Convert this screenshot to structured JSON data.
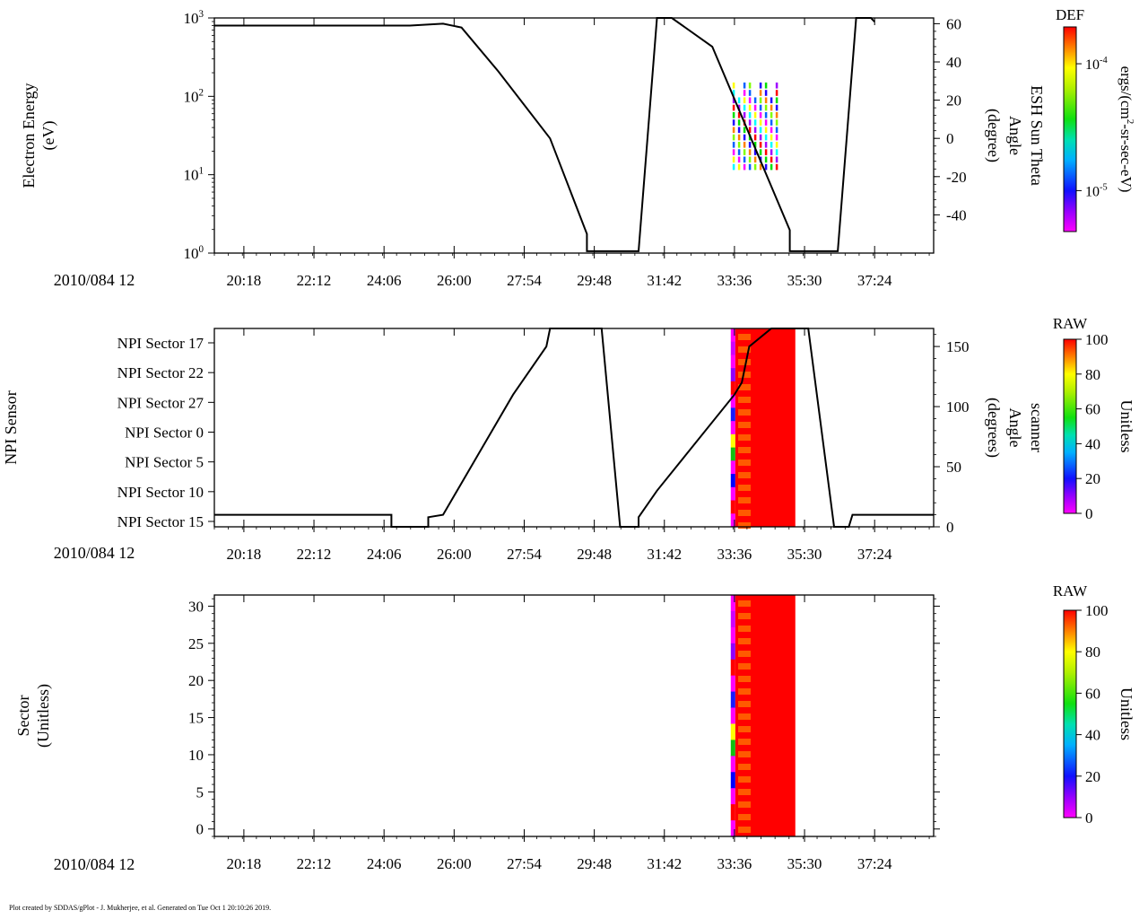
{
  "chart_data": [
    {
      "type": "spectrogram",
      "title": "",
      "date_label": "2010/084 12",
      "ylabel": [
        "Electron Energy",
        "(eV)"
      ],
      "y_scale": "log",
      "ylim": [
        1,
        1000
      ],
      "y_ticks": [
        {
          "value": 1,
          "base": "10",
          "exp": "0"
        },
        {
          "value": 10,
          "base": "10",
          "exp": "1"
        },
        {
          "value": 100,
          "base": "10",
          "exp": "2"
        },
        {
          "value": 1000,
          "base": "10",
          "exp": "3"
        }
      ],
      "xlabel": "",
      "xlim": [
        19.5,
        39.0
      ],
      "x_ticks": [
        {
          "value": 20.3,
          "label": "20:18"
        },
        {
          "value": 22.2,
          "label": "22:12"
        },
        {
          "value": 24.1,
          "label": "24:06"
        },
        {
          "value": 26.0,
          "label": "26:00"
        },
        {
          "value": 27.9,
          "label": "27:54"
        },
        {
          "value": 29.8,
          "label": "29:48"
        },
        {
          "value": 31.7,
          "label": "31:42"
        },
        {
          "value": 33.6,
          "label": "33:36"
        },
        {
          "value": 35.5,
          "label": "35:30"
        },
        {
          "value": 37.4,
          "label": "37:24"
        }
      ],
      "right_axis": {
        "label": [
          "ESH Sun Theta",
          "Angle",
          "(degree)"
        ],
        "ylim": [
          -60,
          63
        ],
        "ticks": [
          -40,
          -20,
          0,
          20,
          40,
          60
        ]
      },
      "overlay_line": {
        "name": "ESH Sun Theta Angle",
        "points": [
          [
            19.5,
            59
          ],
          [
            24.8,
            59
          ],
          [
            25.7,
            60
          ],
          [
            26.2,
            58
          ],
          [
            27.2,
            35
          ],
          [
            28.6,
            0
          ],
          [
            29.6,
            -50
          ],
          [
            29.6,
            -59
          ],
          [
            31.0,
            -59
          ],
          [
            31.5,
            63
          ],
          [
            31.9,
            63
          ],
          [
            33.0,
            48
          ],
          [
            35.1,
            -48
          ],
          [
            35.1,
            -59
          ],
          [
            36.4,
            -59
          ],
          [
            36.9,
            63
          ],
          [
            37.3,
            63
          ],
          [
            37.4,
            61
          ]
        ],
        "color": "#000000"
      },
      "spectrogram_patch": {
        "x_range": [
          33.55,
          34.7
        ],
        "y_range": [
          11,
          150
        ],
        "note": "sparse vertical stripes of DEF values"
      },
      "colorbar": {
        "title": "DEF",
        "label": "ergs/(cm^2-sr-sec-eV)",
        "scale": "log",
        "ticks": [
          {
            "value": 0.0001,
            "base": "10",
            "exp": "-4"
          },
          {
            "value": 1e-05,
            "base": "10",
            "exp": "-5"
          }
        ]
      }
    },
    {
      "type": "spectrogram",
      "title": "",
      "date_label": "2010/084 12",
      "ylabel": [
        "NPI Sensor"
      ],
      "y_categories": [
        "NPI Sector 17",
        "NPI Sector 22",
        "NPI Sector 27",
        "NPI Sector 0",
        "NPI Sector 5",
        "NPI Sector 10",
        "NPI Sector 15"
      ],
      "xlabel": "",
      "xlim": [
        19.5,
        39.0
      ],
      "x_ticks": [
        {
          "value": 20.3,
          "label": "20:18"
        },
        {
          "value": 22.2,
          "label": "22:12"
        },
        {
          "value": 24.1,
          "label": "24:06"
        },
        {
          "value": 26.0,
          "label": "26:00"
        },
        {
          "value": 27.9,
          "label": "27:54"
        },
        {
          "value": 29.8,
          "label": "29:48"
        },
        {
          "value": 31.7,
          "label": "31:42"
        },
        {
          "value": 33.6,
          "label": "33:36"
        },
        {
          "value": 35.5,
          "label": "35:30"
        },
        {
          "value": 37.4,
          "label": "37:24"
        }
      ],
      "right_axis": {
        "label": [
          "scanner",
          "Angle",
          "(degrees)"
        ],
        "ylim": [
          0,
          165
        ],
        "ticks": [
          0,
          50,
          100,
          150
        ]
      },
      "overlay_line": {
        "name": "scanner Angle",
        "points": [
          [
            19.5,
            10
          ],
          [
            24.3,
            10
          ],
          [
            24.3,
            0
          ],
          [
            25.3,
            0
          ],
          [
            25.3,
            8
          ],
          [
            25.7,
            10
          ],
          [
            27.6,
            110
          ],
          [
            28.5,
            150
          ],
          [
            28.6,
            165
          ],
          [
            30.0,
            165
          ],
          [
            30.5,
            0
          ],
          [
            31.0,
            0
          ],
          [
            31.0,
            8
          ],
          [
            31.5,
            30
          ],
          [
            33.6,
            110
          ],
          [
            33.8,
            120
          ],
          [
            34.0,
            150
          ],
          [
            34.6,
            165
          ],
          [
            35.6,
            165
          ],
          [
            36.3,
            0
          ],
          [
            36.7,
            0
          ],
          [
            36.8,
            10
          ],
          [
            39.0,
            10
          ]
        ],
        "color": "#000000"
      },
      "red_region": {
        "x_range": [
          33.5,
          35.25
        ],
        "value": 100
      },
      "colorbar": {
        "title": "RAW",
        "label": "Unitless",
        "range": [
          0,
          100
        ],
        "ticks": [
          0,
          20,
          40,
          60,
          80,
          100
        ]
      }
    },
    {
      "type": "spectrogram",
      "title": "",
      "date_label": "2010/084 12",
      "ylabel": [
        "Sector",
        "(Unitless)"
      ],
      "ylim": [
        -1,
        31.5
      ],
      "y_ticks": [
        0,
        5,
        10,
        15,
        20,
        25,
        30
      ],
      "xlabel": "",
      "xlim": [
        19.5,
        39.0
      ],
      "x_ticks": [
        {
          "value": 20.3,
          "label": "20:18"
        },
        {
          "value": 22.2,
          "label": "22:12"
        },
        {
          "value": 24.1,
          "label": "24:06"
        },
        {
          "value": 26.0,
          "label": "26:00"
        },
        {
          "value": 27.9,
          "label": "27:54"
        },
        {
          "value": 29.8,
          "label": "29:48"
        },
        {
          "value": 31.7,
          "label": "31:42"
        },
        {
          "value": 33.6,
          "label": "33:36"
        },
        {
          "value": 35.5,
          "label": "35:30"
        },
        {
          "value": 37.4,
          "label": "37:24"
        }
      ],
      "red_region": {
        "x_range": [
          33.5,
          35.25
        ],
        "value": 100
      },
      "colorbar": {
        "title": "RAW",
        "label": "Unitless",
        "range": [
          0,
          100
        ],
        "ticks": [
          0,
          20,
          40,
          60,
          80,
          100
        ]
      }
    }
  ],
  "footer": "Plot created by SDDAS/gPlot - J. Mukherjee, et al.  Generated on Tue Oct 1 20:10:26 2019.",
  "colors": {
    "axis": "#000000",
    "saturated": "#ff0000",
    "stripe": "#ff5a00",
    "low": "#ff00ff"
  }
}
